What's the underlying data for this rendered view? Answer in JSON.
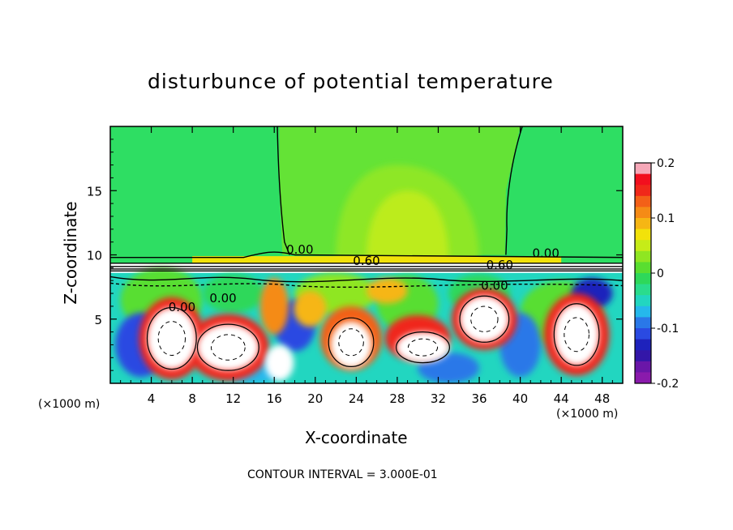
{
  "chart_data": {
    "type": "heatmap",
    "title": "disturbunce of potential temperature",
    "xlabel": "X-coordinate",
    "ylabel": "Z-coordinate",
    "x_unit": "(×1000 m)",
    "x_unit_right": "(×1000 m)",
    "xlim": [
      0,
      50
    ],
    "ylim": [
      0,
      20
    ],
    "x_ticks": [
      4,
      8,
      12,
      16,
      20,
      24,
      28,
      32,
      36,
      40,
      44,
      48
    ],
    "y_ticks": [
      5,
      10,
      15
    ],
    "colorbar": {
      "min": -0.2,
      "max": 0.2,
      "tick_labels": [
        "0.2",
        "0.1",
        "0",
        "-0.1",
        "-0.2"
      ],
      "tick_values": [
        0.2,
        0.1,
        0,
        -0.1,
        -0.2
      ],
      "colors": [
        "#f6a8b8",
        "#f20f1e",
        "#f0281a",
        "#f36018",
        "#f58b16",
        "#f6b614",
        "#f2e20a",
        "#c6ec18",
        "#8fe622",
        "#59de30",
        "#2ed85a",
        "#2adc8c",
        "#22d6c0",
        "#25b8ec",
        "#2a78e8",
        "#2a4ae2",
        "#1e22bc",
        "#3316a8",
        "#6a16a8",
        "#8a1aac"
      ]
    },
    "contour_labels": [
      "0.00",
      "0.00",
      "0.00",
      "0.60",
      "0.60",
      "0.00",
      "0.00"
    ],
    "contour_interval_text": "CONTOUR INTERVAL = 3.000E-01"
  }
}
